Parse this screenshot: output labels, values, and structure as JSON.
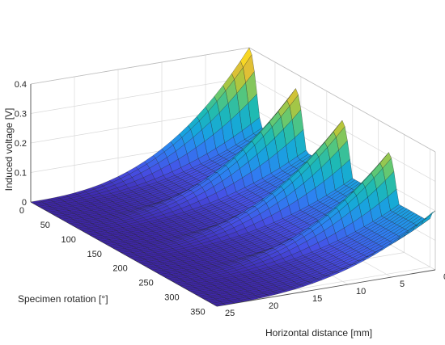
{
  "chart_data": {
    "type": "surface",
    "title": "",
    "xlabel": "Specimen rotation [°]",
    "ylabel": "Horizontal distance [mm]",
    "zlabel": "Induced voltage [V]",
    "xlim": [
      0,
      360
    ],
    "ylim": [
      0,
      25
    ],
    "zlim": [
      0,
      0.4
    ],
    "x_ticks": [
      "0",
      "50",
      "100",
      "150",
      "200",
      "250",
      "300",
      "350"
    ],
    "y_ticks": [
      "0",
      "5",
      "10",
      "15",
      "20",
      "25"
    ],
    "z_ticks": [
      "0",
      "0.1",
      "0.2",
      "0.3",
      "0.4"
    ],
    "grid": true,
    "colormap": "parula",
    "colors": {
      "low": "#3e26a8",
      "mid": "#20b3a8",
      "high": "#f9fb0e"
    },
    "peaks": [
      {
        "rotation": 0,
        "voltage_at_0mm": 0.4
      },
      {
        "rotation": 90,
        "voltage_at_0mm": 0.35
      },
      {
        "rotation": 180,
        "voltage_at_0mm": 0.33
      },
      {
        "rotation": 270,
        "voltage_at_0mm": 0.31
      },
      {
        "rotation": 360,
        "voltage_at_0mm": 0.2
      }
    ],
    "baseline_voltage_at_25mm": 0.0
  }
}
